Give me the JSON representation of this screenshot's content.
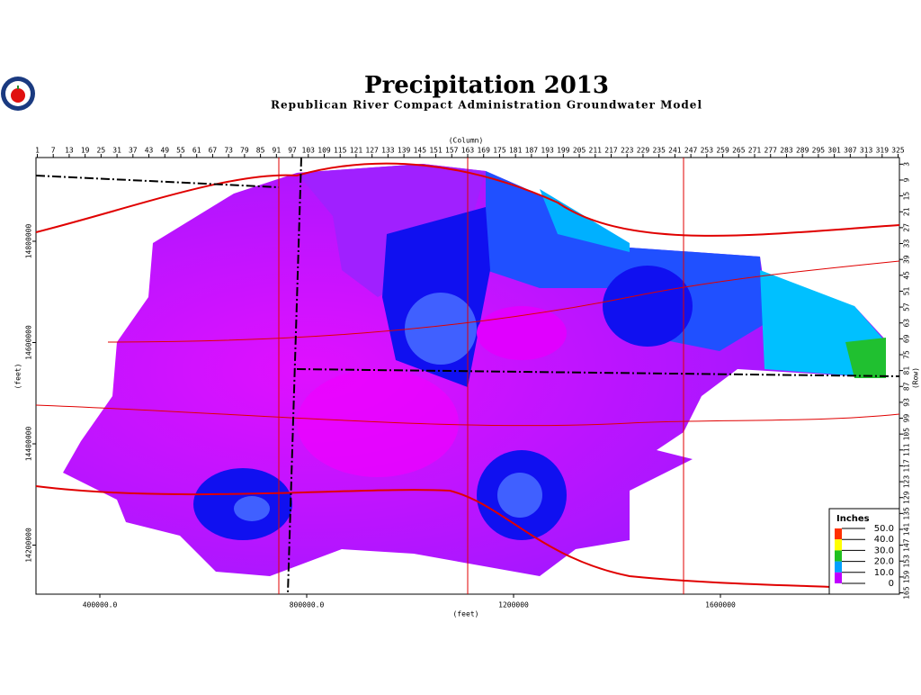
{
  "header": {
    "title": "Precipitation 2013",
    "subtitle": "Republican River Compact Administration Groundwater Model"
  },
  "axes": {
    "column": {
      "label": "(Column)",
      "ticks": [
        1,
        7,
        13,
        19,
        25,
        31,
        37,
        43,
        49,
        55,
        61,
        67,
        73,
        79,
        85,
        91,
        97,
        103,
        109,
        115,
        121,
        127,
        133,
        139,
        145,
        151,
        157,
        163,
        169,
        175,
        181,
        187,
        193,
        199,
        205,
        211,
        217,
        223,
        229,
        235,
        241,
        247,
        253,
        259,
        265,
        271,
        277,
        283,
        289,
        295,
        301,
        307,
        313,
        319,
        325
      ]
    },
    "row": {
      "label": "(Row)",
      "ticks": [
        3,
        9,
        15,
        21,
        27,
        33,
        39,
        45,
        51,
        57,
        63,
        69,
        75,
        81,
        87,
        93,
        99,
        105,
        111,
        117,
        123,
        129,
        135,
        141,
        147,
        153,
        159,
        165
      ]
    },
    "easting": {
      "label": "(feet)",
      "ticks": [
        {
          "value": 400000,
          "label": "400000.0"
        },
        {
          "value": 800000,
          "label": "800000.0"
        },
        1200000,
        1600000
      ]
    },
    "northing": {
      "label": "(feet)",
      "ticks": [
        14800000,
        14600000,
        14400000,
        14200000
      ]
    }
  },
  "legend": {
    "title": "Inches",
    "entries": [
      {
        "value": 50,
        "label": "50.0",
        "color": "#ff3000"
      },
      {
        "value": 40,
        "label": "40.0",
        "color": "#ffff00"
      },
      {
        "value": 30,
        "label": "30.0",
        "color": "#20c020"
      },
      {
        "value": 20,
        "label": "20.0",
        "color": "#00a0ff"
      },
      {
        "value": 10,
        "label": "10.0",
        "color": "#c000ff"
      },
      {
        "value": 0,
        "label": "0",
        "color": "#7000c0"
      }
    ]
  }
}
